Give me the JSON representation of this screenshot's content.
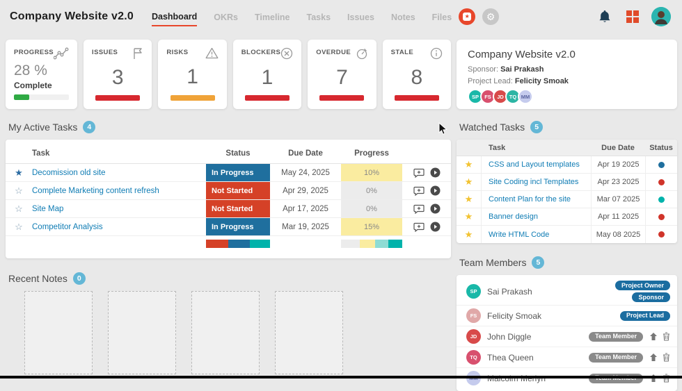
{
  "topbar": {
    "title": "Company Website v2.0",
    "tabs": [
      "Dashboard",
      "OKRs",
      "Timeline",
      "Tasks",
      "Issues",
      "Notes",
      "Files"
    ],
    "active_tab": "Dashboard",
    "icons": [
      "record-icon",
      "gear-icon",
      "bell-icon",
      "apps-grid-icon",
      "user-avatar"
    ]
  },
  "colors": {
    "accent_orange": "#e8472b",
    "count_badge_blue": "#64b7d6",
    "link_blue": "#0f7cb4",
    "status_in_progress": "#1f6f9e",
    "status_not_started": "#d54127",
    "teal": "#00b3ab"
  },
  "stat_cards": [
    {
      "label": "PROGRESS",
      "icon": "trend-icon",
      "value": "28 %",
      "sub": "Complete",
      "bar_color": "#2faa44",
      "bar_pct": 28
    },
    {
      "label": "ISSUES",
      "icon": "flag-icon",
      "value": "3",
      "bar_color": "#d7282f"
    },
    {
      "label": "RISKS",
      "icon": "warning-icon",
      "value": "1",
      "bar_color": "#f0a338"
    },
    {
      "label": "BLOCKERS",
      "icon": "circle-x-icon",
      "value": "1",
      "bar_color": "#d7282f"
    },
    {
      "label": "OVERDUE",
      "icon": "timer-icon",
      "value": "7",
      "bar_color": "#d7282f"
    },
    {
      "label": "STALE",
      "icon": "info-icon",
      "value": "8",
      "bar_color": "#d7282f"
    }
  ],
  "project_info": {
    "title": "Company Website v2.0",
    "sponsor_label": "Sponsor:",
    "sponsor": "Sai Prakash",
    "lead_label": "Project Lead:",
    "lead": "Felicity Smoak",
    "avatars": [
      {
        "initials": "SP",
        "color": "#19b8a8"
      },
      {
        "initials": "FS",
        "color": "#d8506e"
      },
      {
        "initials": "JD",
        "color": "#d84a4a"
      },
      {
        "initials": "TQ",
        "color": "#2bb5a4"
      },
      {
        "initials": "MM",
        "color": "#c5cbed",
        "text_color": "#5a64a0"
      }
    ]
  },
  "active_tasks": {
    "heading": "My Active Tasks",
    "count": "4",
    "columns": {
      "task": "Task",
      "status": "Status",
      "due": "Due Date",
      "progress": "Progress"
    },
    "rows": [
      {
        "starred": true,
        "task": "Decomission old site",
        "status": "In Progress",
        "status_color": "#1f6f9e",
        "due": "May 24, 2025",
        "progress": "10%",
        "progress_bg": "#faeca0"
      },
      {
        "starred": false,
        "task": "Complete Marketing content refresh",
        "status": "Not Started",
        "status_color": "#d54127",
        "due": "Apr 29, 2025",
        "progress": "0%",
        "progress_bg": "#ececec"
      },
      {
        "starred": false,
        "task": "Site Map",
        "status": "Not Started",
        "status_color": "#d54127",
        "due": "Apr 17, 2025",
        "progress": "0%",
        "progress_bg": "#ececec"
      },
      {
        "starred": false,
        "task": "Competitor Analysis",
        "status": "In Progress",
        "status_color": "#1f6f9e",
        "due": "Mar 19, 2025",
        "progress": "15%",
        "progress_bg": "#faeca0"
      }
    ],
    "status_summary": [
      {
        "color": "#d54127",
        "pct": 35
      },
      {
        "color": "#1f6f9e",
        "pct": 33
      },
      {
        "color": "#00b3ab",
        "pct": 32
      }
    ],
    "progress_summary": [
      {
        "color": "#ececec",
        "pct": 31
      },
      {
        "color": "#faeca0",
        "pct": 25
      },
      {
        "color": "#8edcd4",
        "pct": 21
      },
      {
        "color": "#00b3ab",
        "pct": 23
      }
    ]
  },
  "watched_tasks": {
    "heading": "Watched Tasks",
    "count": "5",
    "columns": {
      "task": "Task",
      "due": "Due Date",
      "status": "Status"
    },
    "rows": [
      {
        "task": "CSS and Layout templates",
        "due": "Apr 19 2025",
        "dot_color": "#1f6f9e"
      },
      {
        "task": "Site Coding incl Templates",
        "due": "Apr 23 2025",
        "dot_color": "#d0342a"
      },
      {
        "task": "Content Plan for the site",
        "due": "Mar 07 2025",
        "dot_color": "#00b3ab"
      },
      {
        "task": "Banner design",
        "due": "Apr 11 2025",
        "dot_color": "#d0342a"
      },
      {
        "task": "Write HTML Code",
        "due": "May 08 2025",
        "dot_color": "#d0342a"
      }
    ]
  },
  "team_members": {
    "heading": "Team Members",
    "count": "5",
    "rows": [
      {
        "name": "Sai Prakash",
        "initials": "SP",
        "avatar_color": "#19b8a8",
        "badges": [
          "Project Owner",
          "Sponsor"
        ],
        "badge_style": "blue",
        "has_actions": false
      },
      {
        "name": "Felicity Smoak",
        "initials": "FS",
        "avatar_color": "#e0a8a8",
        "badges": [
          "Project Lead"
        ],
        "badge_style": "blue",
        "has_actions": false
      },
      {
        "name": "John Diggle",
        "initials": "JD",
        "avatar_color": "#d84a4a",
        "badges": [
          "Team Member"
        ],
        "badge_style": "gray",
        "has_actions": true
      },
      {
        "name": "Thea Queen",
        "initials": "TQ",
        "avatar_color": "#d8506e",
        "badges": [
          "Team Member"
        ],
        "badge_style": "gray",
        "has_actions": true
      },
      {
        "name": "Malcolm Merlyn",
        "initials": "MM",
        "avatar_color": "#c5cbed",
        "text_color": "#5a64a0",
        "badges": [
          "Team Member"
        ],
        "badge_style": "gray",
        "has_actions": true
      }
    ]
  },
  "recent_notes": {
    "heading": "Recent Notes",
    "count": "0",
    "placeholder_count": 4
  }
}
